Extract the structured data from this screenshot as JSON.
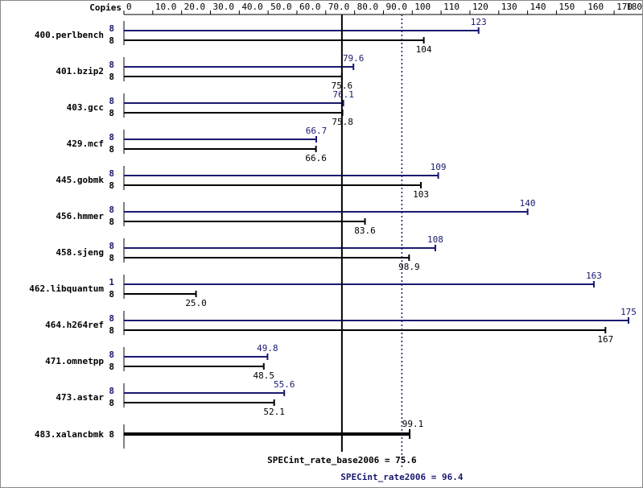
{
  "chart_data": {
    "type": "spec-bar",
    "axis_label": "Copies",
    "xlim": [
      0,
      180
    ],
    "xticks": [
      0,
      {
        "value": 10,
        "label": "10.0"
      },
      {
        "value": 20,
        "label": "20.0"
      },
      {
        "value": 30,
        "label": "30.0"
      },
      {
        "value": 40,
        "label": "40.0"
      },
      {
        "value": 50,
        "label": "50.0"
      },
      {
        "value": 60,
        "label": "60.0"
      },
      {
        "value": 70,
        "label": "70.0"
      },
      {
        "value": 80,
        "label": "80.0"
      },
      {
        "value": 90,
        "label": "90.0"
      },
      100,
      110,
      120,
      130,
      140,
      150,
      160,
      170,
      180
    ],
    "categories": [
      "400.perlbench",
      "401.bzip2",
      "403.gcc",
      "429.mcf",
      "445.gobmk",
      "456.hmmer",
      "458.sjeng",
      "462.libquantum",
      "464.h264ref",
      "471.omnetpp",
      "473.astar",
      "483.xalancbmk"
    ],
    "series": [
      {
        "color": "#191970",
        "copies": [
          8,
          8,
          8,
          8,
          8,
          8,
          8,
          1,
          8,
          8,
          8,
          null
        ],
        "values": [
          123,
          79.6,
          76.1,
          66.7,
          109,
          140,
          108,
          163,
          175,
          49.8,
          55.6,
          null
        ]
      },
      {
        "color": "#000000",
        "copies": [
          8,
          8,
          8,
          8,
          8,
          8,
          8,
          8,
          8,
          8,
          8,
          8
        ],
        "values": [
          104,
          75.6,
          75.8,
          66.6,
          103,
          83.6,
          98.9,
          25.0,
          167,
          48.5,
          52.1,
          99.1
        ],
        "value_labels": [
          "104",
          "75.6",
          "75.8",
          "66.6",
          "103",
          "83.6",
          "98.9",
          "25.0",
          "167",
          "48.5",
          "52.1",
          "99.1"
        ]
      }
    ],
    "reference_lines": [
      {
        "label": "SPECint_rate_base2006 = 75.6",
        "value": 75.6,
        "color": "#000000",
        "dashed": false
      },
      {
        "label": "SPECint_rate2006 = 96.4",
        "value": 96.4,
        "color": "#191970",
        "dashed": true
      }
    ]
  }
}
